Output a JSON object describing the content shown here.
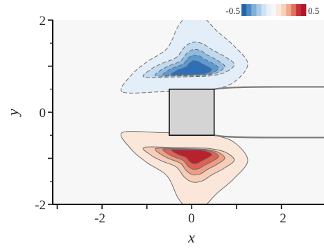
{
  "chart_data": {
    "type": "heatmap",
    "title": "",
    "xlabel": "x",
    "ylabel": "y",
    "xlim": [
      -3.1,
      2.95
    ],
    "ylim": [
      -2,
      2
    ],
    "x_ticks": [
      {
        "value": -2,
        "label": "-2"
      },
      {
        "value": 0,
        "label": "0"
      },
      {
        "value": 2,
        "label": "2"
      }
    ],
    "y_ticks": [
      {
        "value": 2,
        "label": "2"
      },
      {
        "value": 0,
        "label": "0"
      },
      {
        "value": -2,
        "label": "-2"
      }
    ],
    "colorbar": {
      "min": -0.5,
      "max": 0.5,
      "min_label": "-0.5",
      "max_label": "0.5",
      "colors": [
        "#2166ac",
        "#4a8cc4",
        "#7fb0d9",
        "#aacbe6",
        "#d1e3f2",
        "#eaf2f9",
        "#f7f7f7",
        "#fbe7dc",
        "#f7d0bc",
        "#f0a98d",
        "#e2725f",
        "#c9303a",
        "#b2182b"
      ]
    },
    "body": {
      "shape": "square",
      "x_range": [
        -0.5,
        0.5
      ],
      "y_range": [
        -0.5,
        0.5
      ],
      "color": "#d4d4d4"
    },
    "wake_outline": {
      "x_start": 0.5,
      "x_end": 2.95,
      "half_height": 0.55
    },
    "contours": [
      {
        "name": "negative",
        "sign": -1,
        "center": [
          0,
          0.85
        ],
        "levels": [
          {
            "value": -0.05,
            "color": "#e3eef8"
          },
          {
            "value": -0.15,
            "color": "#c2d9ee"
          },
          {
            "value": -0.25,
            "color": "#8fbbe0"
          },
          {
            "value": -0.35,
            "color": "#5d9ad1"
          },
          {
            "value": -0.45,
            "color": "#2f6fb6"
          }
        ]
      },
      {
        "name": "positive",
        "sign": 1,
        "center": [
          0,
          -0.85
        ],
        "levels": [
          {
            "value": 0.05,
            "color": "#fbe6da"
          },
          {
            "value": 0.15,
            "color": "#f6cdb8"
          },
          {
            "value": 0.25,
            "color": "#ef9e85"
          },
          {
            "value": 0.35,
            "color": "#de6253"
          },
          {
            "value": 0.45,
            "color": "#b8222f"
          }
        ]
      }
    ]
  }
}
